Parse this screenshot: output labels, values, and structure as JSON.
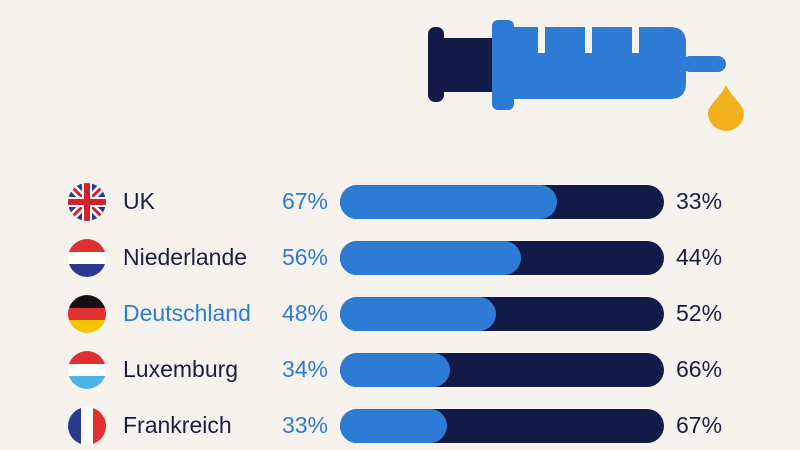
{
  "colors": {
    "background": "#f6f3ef",
    "accent_blue": "#2e7bd6",
    "dark_navy": "#141a48",
    "drop_yellow": "#f2b11a"
  },
  "icons": {
    "header": "syringe-icon",
    "drop": "drop-icon"
  },
  "chart_data": {
    "type": "bar",
    "stacked": true,
    "orientation": "horizontal",
    "categories": [
      "UK",
      "Niederlande",
      "Deutschland",
      "Luxemburg",
      "Frankreich"
    ],
    "series": [
      {
        "values": [
          67,
          56,
          48,
          34,
          33
        ],
        "color": "#2e7bd6"
      },
      {
        "values": [
          33,
          44,
          52,
          66,
          67
        ],
        "color": "#141a48"
      }
    ],
    "labels_left": [
      "67%",
      "56%",
      "48%",
      "34%",
      "33%"
    ],
    "labels_right": [
      "33%",
      "44%",
      "52%",
      "66%",
      "67%"
    ],
    "highlighted_category": "Deutschland",
    "flags": [
      "uk-flag-icon",
      "netherlands-flag-icon",
      "germany-flag-icon",
      "luxembourg-flag-icon",
      "france-flag-icon"
    ],
    "xlim": [
      0,
      100
    ]
  }
}
